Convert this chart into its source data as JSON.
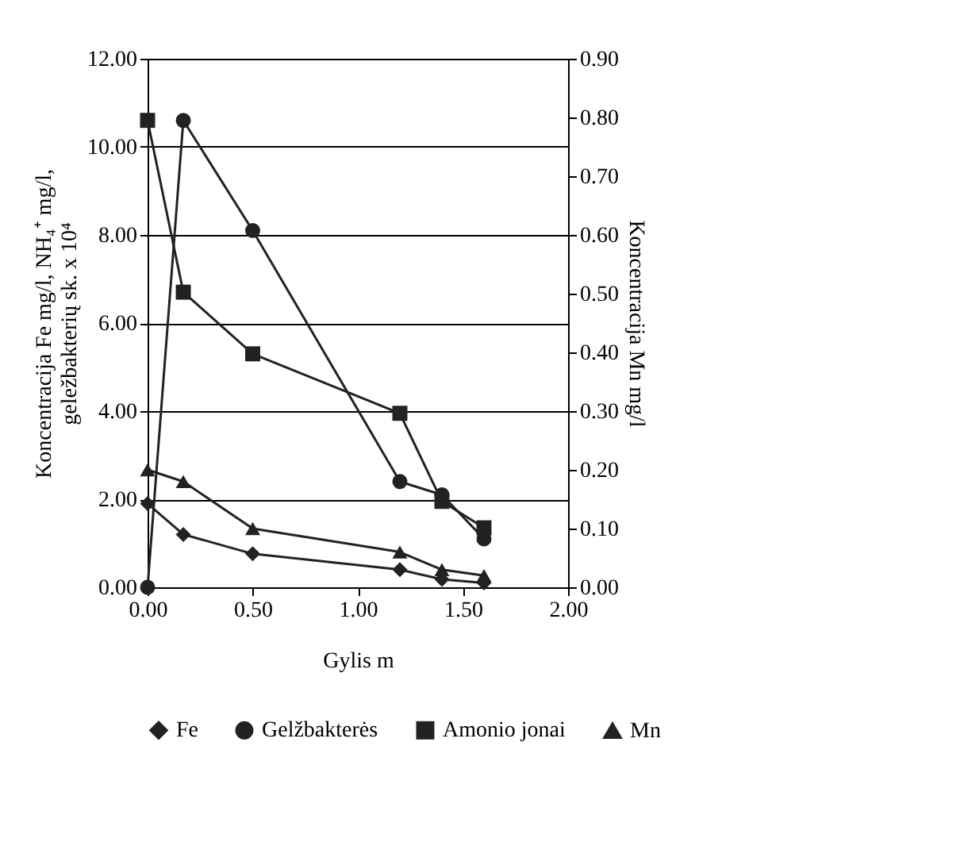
{
  "chart_data": {
    "type": "line",
    "xlabel": "Gylis  m",
    "ylabel": "Koncentracija Fe  mg/l, NH₄⁺  mg/l,\ngeležbakterių sk. x 10⁴",
    "y2label": "Koncentracija Mn  mg/l",
    "x": [
      0,
      0.17,
      0.5,
      1.2,
      1.4,
      1.6
    ],
    "series": [
      {
        "name": "Fe",
        "color": "#222222",
        "marker": "diamond",
        "values": [
          1.9,
          1.2,
          0.76,
          0.4,
          0.18,
          0.1
        ]
      },
      {
        "name": "Gelžbakterės",
        "color": "#222222",
        "marker": "circle",
        "values": [
          0,
          10.6,
          8.1,
          2.4,
          2.1,
          1.1
        ]
      },
      {
        "name": "Amonio jonai",
        "color": "#222222",
        "marker": "square",
        "values": [
          10.6,
          6.7,
          5.3,
          3.95,
          1.95,
          1.35
        ]
      },
      {
        "name": "Mn",
        "color": "#222222",
        "marker": "triangle",
        "axis": "y2",
        "values": [
          0.2,
          0.18,
          0.1,
          0.06,
          0.03,
          0.02
        ]
      }
    ],
    "xlim": [
      0,
      2
    ],
    "xticks": [
      {
        "value": 0,
        "label": "0.00"
      },
      {
        "value": 0.5,
        "label": "0.50"
      },
      {
        "value": 1,
        "label": "1.00"
      },
      {
        "value": 1.5,
        "label": "1.50"
      },
      {
        "value": 2,
        "label": "2.00"
      }
    ],
    "ylim": [
      0,
      12
    ],
    "yticks": [
      {
        "value": 0,
        "label": "0.00"
      },
      {
        "value": 2,
        "label": "2.00"
      },
      {
        "value": 4,
        "label": "4.00"
      },
      {
        "value": 6,
        "label": "6.00"
      },
      {
        "value": 8,
        "label": "8.00"
      },
      {
        "value": 10,
        "label": "10.00"
      },
      {
        "value": 12,
        "label": "12.00"
      }
    ],
    "y2lim": [
      0,
      0.9
    ],
    "y2ticks": [
      {
        "value": 0,
        "label": "0.00"
      },
      {
        "value": 0.1,
        "label": "0.10"
      },
      {
        "value": 0.2,
        "label": "0.20"
      },
      {
        "value": 0.3,
        "label": "0.30"
      },
      {
        "value": 0.4,
        "label": "0.40"
      },
      {
        "value": 0.5,
        "label": "0.50"
      },
      {
        "value": 0.6,
        "label": "0.60"
      },
      {
        "value": 0.7,
        "label": "0.70"
      },
      {
        "value": 0.8,
        "label": "0.80"
      },
      {
        "value": 0.9,
        "label": "0.90"
      }
    ],
    "grid": "y",
    "legend": "bottom",
    "line_style": "solid"
  }
}
